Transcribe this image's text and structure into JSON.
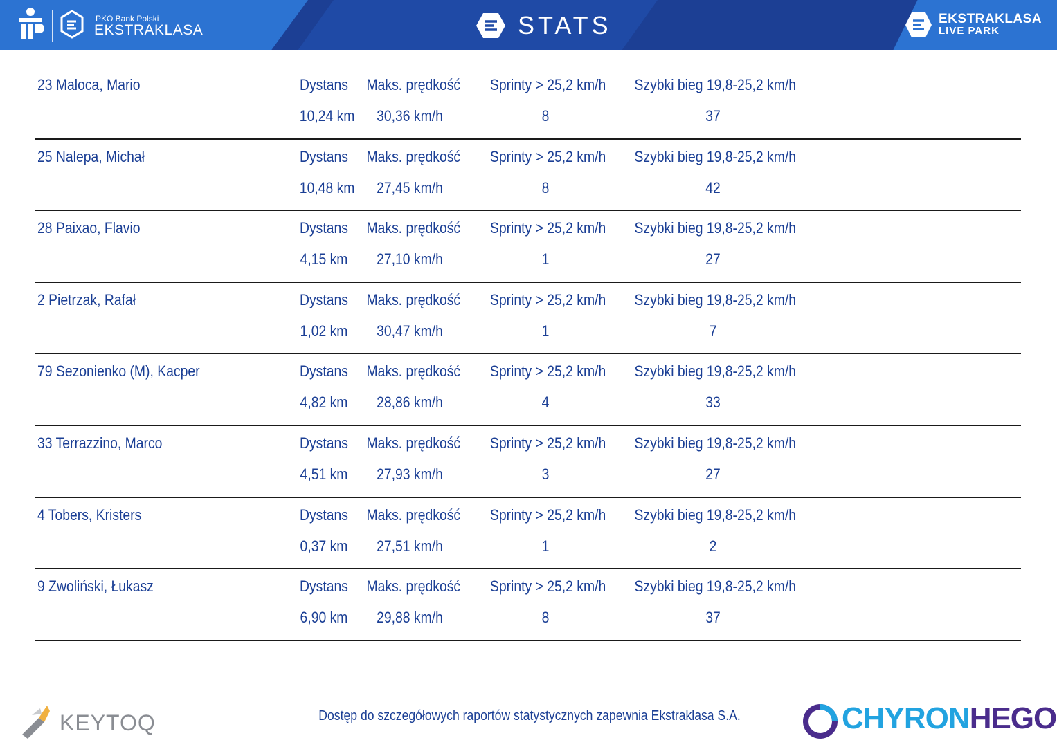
{
  "header": {
    "bank_small": "PKO Bank Polski",
    "bank_brand": "EKSTRAKLASA",
    "title": "STATS",
    "live_line1": "EKSTRAKLASA",
    "live_line2": "LIVE PARK"
  },
  "labels": {
    "distance": "Dystans",
    "max_speed": "Maks. prędkość",
    "sprints": "Sprinty > 25,2 km/h",
    "fast_run": "Szybki bieg 19,8-25,2 km/h"
  },
  "players": [
    {
      "name": "23  Maloca, Mario",
      "distance": "10,24 km",
      "max_speed": "30,36 km/h",
      "sprints": "8",
      "fast_run": "37"
    },
    {
      "name": "25  Nalepa, Michał",
      "distance": "10,48 km",
      "max_speed": "27,45 km/h",
      "sprints": "8",
      "fast_run": "42"
    },
    {
      "name": "28  Paixao, Flavio",
      "distance": "4,15 km",
      "max_speed": "27,10 km/h",
      "sprints": "1",
      "fast_run": "27"
    },
    {
      "name": "2  Pietrzak, Rafał",
      "distance": "1,02 km",
      "max_speed": "30,47 km/h",
      "sprints": "1",
      "fast_run": "7"
    },
    {
      "name": "79  Sezonienko (M), Kacper",
      "distance": "4,82 km",
      "max_speed": "28,86 km/h",
      "sprints": "4",
      "fast_run": "33"
    },
    {
      "name": "33  Terrazzino, Marco",
      "distance": "4,51 km",
      "max_speed": "27,93 km/h",
      "sprints": "3",
      "fast_run": "27"
    },
    {
      "name": "4  Tobers, Kristers",
      "distance": "0,37 km",
      "max_speed": "27,51 km/h",
      "sprints": "1",
      "fast_run": "2"
    },
    {
      "name": "9  Zwoliński, Łukasz",
      "distance": "6,90 km",
      "max_speed": "29,88 km/h",
      "sprints": "8",
      "fast_run": "37"
    }
  ],
  "footer": {
    "keytoq": "KEYTOQ",
    "note": "Dostęp do szczegółowych raportów statystycznych zapewnia Ekstraklasa S.A.",
    "chyron_a": "CHYRON",
    "chyron_b": "HEGO"
  },
  "colors": {
    "header_bg": "#1c3f94",
    "text_blue": "#1b3f95",
    "chyron_blue": "#22a3e0",
    "chyron_purple": "#4a2c8c"
  }
}
